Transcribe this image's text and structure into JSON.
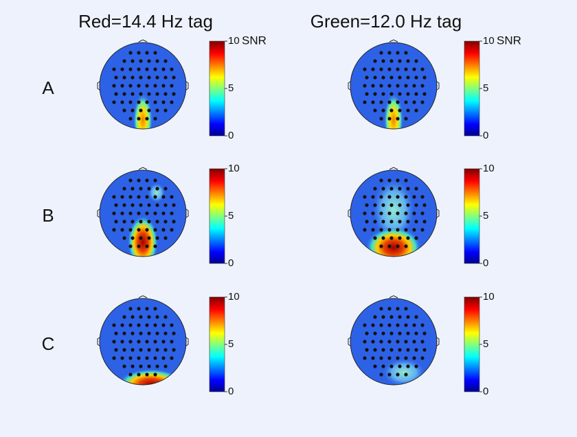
{
  "columns": [
    {
      "title": "Red=14.4 Hz tag"
    },
    {
      "title": "Green=12.0 Hz tag"
    }
  ],
  "rows": [
    "A",
    "B",
    "C"
  ],
  "colorbar": {
    "label": "SNR",
    "lim": [
      0,
      10
    ],
    "ticks": [
      0,
      5,
      10
    ]
  }
}
